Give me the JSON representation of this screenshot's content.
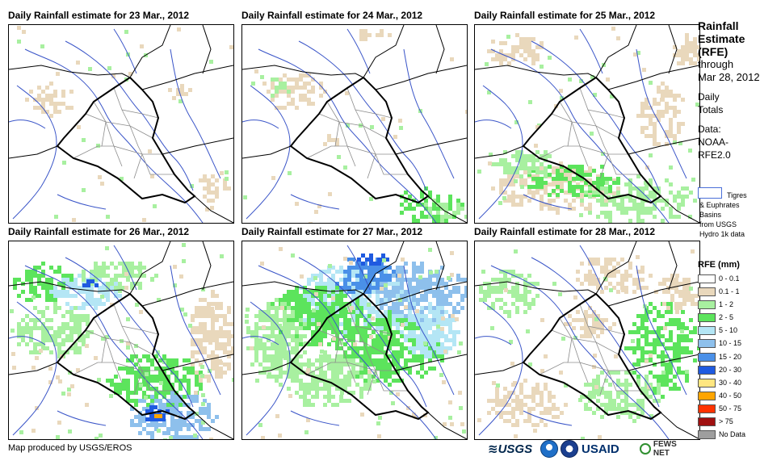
{
  "panels": [
    {
      "title": "Daily Rainfall estimate for 23 Mar., 2012",
      "intensity": 1
    },
    {
      "title": "Daily Rainfall estimate for 24 Mar., 2012",
      "intensity": 0
    },
    {
      "title": "Daily Rainfall estimate for 25 Mar., 2012",
      "intensity": 2
    },
    {
      "title": "Daily Rainfall estimate for 26 Mar., 2012",
      "intensity": 4
    },
    {
      "title": "Daily Rainfall estimate for 27 Mar., 2012",
      "intensity": 5
    },
    {
      "title": "Daily Rainfall estimate for 28 Mar., 2012",
      "intensity": 2
    }
  ],
  "sidebar": {
    "title_1": "Rainfall",
    "title_2": "Estimate",
    "title_3": "(RFE)",
    "through": "through",
    "date": "Mar 28, 2012",
    "daily_1": "Daily",
    "daily_2": "Totals",
    "data_1": "Data:",
    "data_2": "NOAA-",
    "data_3": "RFE2.0"
  },
  "basins": {
    "swatch_color": "#4a6fd8",
    "line_1": "Tigres",
    "line_2": "& Euphrates",
    "line_3": "Basins",
    "line_4": "from USGS",
    "line_5": "Hydro 1k data"
  },
  "legend": {
    "title": "RFE (mm)",
    "items": [
      {
        "label": "0 - 0.1",
        "color": "#ffffff"
      },
      {
        "label": "0.1 - 1",
        "color": "#e9d8bc"
      },
      {
        "label": "1 - 2",
        "color": "#a8f0a0"
      },
      {
        "label": "2 - 5",
        "color": "#5ce45c"
      },
      {
        "label": "5 - 10",
        "color": "#b4e6f5"
      },
      {
        "label": "10 - 15",
        "color": "#8ec0ec"
      },
      {
        "label": "15 - 20",
        "color": "#4a90e8"
      },
      {
        "label": "20 - 30",
        "color": "#1f5ae0"
      },
      {
        "label": "30 - 40",
        "color": "#ffe680"
      },
      {
        "label": "40 - 50",
        "color": "#ffa500"
      },
      {
        "label": "50 - 75",
        "color": "#ff3300"
      },
      {
        "label": "> 75",
        "color": "#a01010"
      },
      {
        "label": "No Data",
        "color": "#9e9e9e"
      }
    ]
  },
  "footer": {
    "credit": "Map produced by USGS/EROS",
    "logos": [
      "USGS",
      "NOAA",
      "DOI",
      "USAID",
      "FEWS NET"
    ],
    "usgs_label": "≋USGS",
    "usaid_label": "USAID",
    "fews_label": "FEWS NET"
  },
  "map_colors": {
    "country_border": "#000000",
    "province_border": "#8c8c8c",
    "river": "#3a55c8"
  }
}
